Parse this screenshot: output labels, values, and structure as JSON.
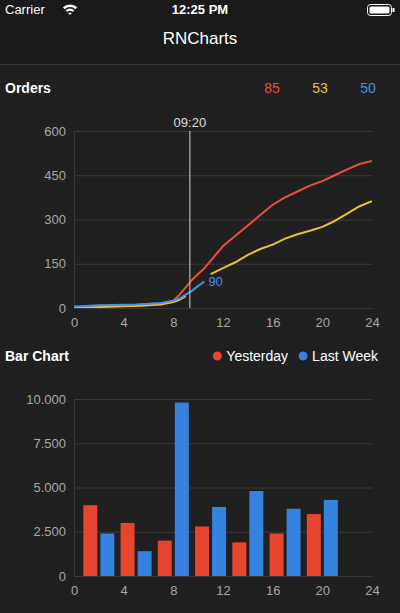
{
  "header": {
    "carrier": "Carrier",
    "time": "12:25 PM",
    "title": "RNCharts"
  },
  "chart_data": [
    {
      "type": "line",
      "title": "Orders",
      "x": [
        0,
        1,
        2,
        3,
        4,
        5,
        6,
        7,
        8,
        8.5,
        9,
        9.5,
        10,
        10.5,
        11,
        12,
        13,
        14,
        15,
        16,
        17,
        18,
        19,
        20,
        21,
        22,
        23,
        24
      ],
      "xlim": [
        0,
        24
      ],
      "xticks": [
        0,
        4,
        8,
        12,
        16,
        20,
        24
      ],
      "ylim": [
        0,
        600
      ],
      "yticks": [
        0,
        150,
        300,
        450,
        600
      ],
      "grid": true,
      "series": [
        {
          "color": "#e8523b",
          "values": [
            2,
            3,
            4,
            5,
            7,
            8,
            10,
            14,
            25,
            45,
            70,
            95,
            115,
            135,
            160,
            210,
            245,
            280,
            315,
            350,
            375,
            395,
            415,
            430,
            450,
            470,
            488,
            498
          ]
        },
        {
          "color": "#e6c13a",
          "values": [
            1,
            2,
            3,
            5,
            6,
            7,
            9,
            12,
            20,
            28,
            40,
            null,
            null,
            null,
            115,
            135,
            155,
            180,
            200,
            215,
            235,
            250,
            262,
            275,
            295,
            320,
            345,
            362
          ]
        },
        {
          "color": "#4a8fe7",
          "values": [
            5,
            7,
            9,
            10,
            11,
            12,
            14,
            17,
            25,
            32,
            45,
            58,
            75,
            90,
            null,
            null,
            null,
            null,
            null,
            null,
            null,
            null,
            null,
            null,
            null,
            null,
            null,
            null
          ]
        }
      ],
      "annotations": [
        {
          "text": "85",
          "color": "#e8523b"
        },
        {
          "text": "53",
          "color": "#e6c13a"
        },
        {
          "text": "50",
          "color": "#4a8fe7"
        },
        {
          "text": "09:20",
          "x": 9.333
        },
        {
          "text": "90",
          "x": 10.5,
          "y": 90,
          "color": "#4a8fe7"
        }
      ]
    },
    {
      "type": "bar",
      "title": "Bar Chart",
      "x": [
        2,
        5,
        8,
        11,
        14,
        17,
        20
      ],
      "xlim": [
        0,
        24
      ],
      "xticks": [
        0,
        4,
        8,
        12,
        16,
        20,
        24
      ],
      "ylim": [
        0,
        10000
      ],
      "yticks": [
        0,
        {
          "value": 2500,
          "label": "2.500"
        },
        {
          "value": 5000,
          "label": "5.000"
        },
        {
          "value": 7500,
          "label": "7.500"
        },
        {
          "value": 10000,
          "label": "10.000"
        }
      ],
      "grid": true,
      "legend": "top-right",
      "series": [
        {
          "name": "Yesterday",
          "color": "#e8452f",
          "values": [
            4000,
            3000,
            2000,
            2800,
            1900,
            2400,
            3500
          ]
        },
        {
          "name": "Last Week",
          "color": "#3582e0",
          "values": [
            2400,
            1400,
            9800,
            3900,
            4800,
            3800,
            4300
          ]
        }
      ]
    }
  ]
}
